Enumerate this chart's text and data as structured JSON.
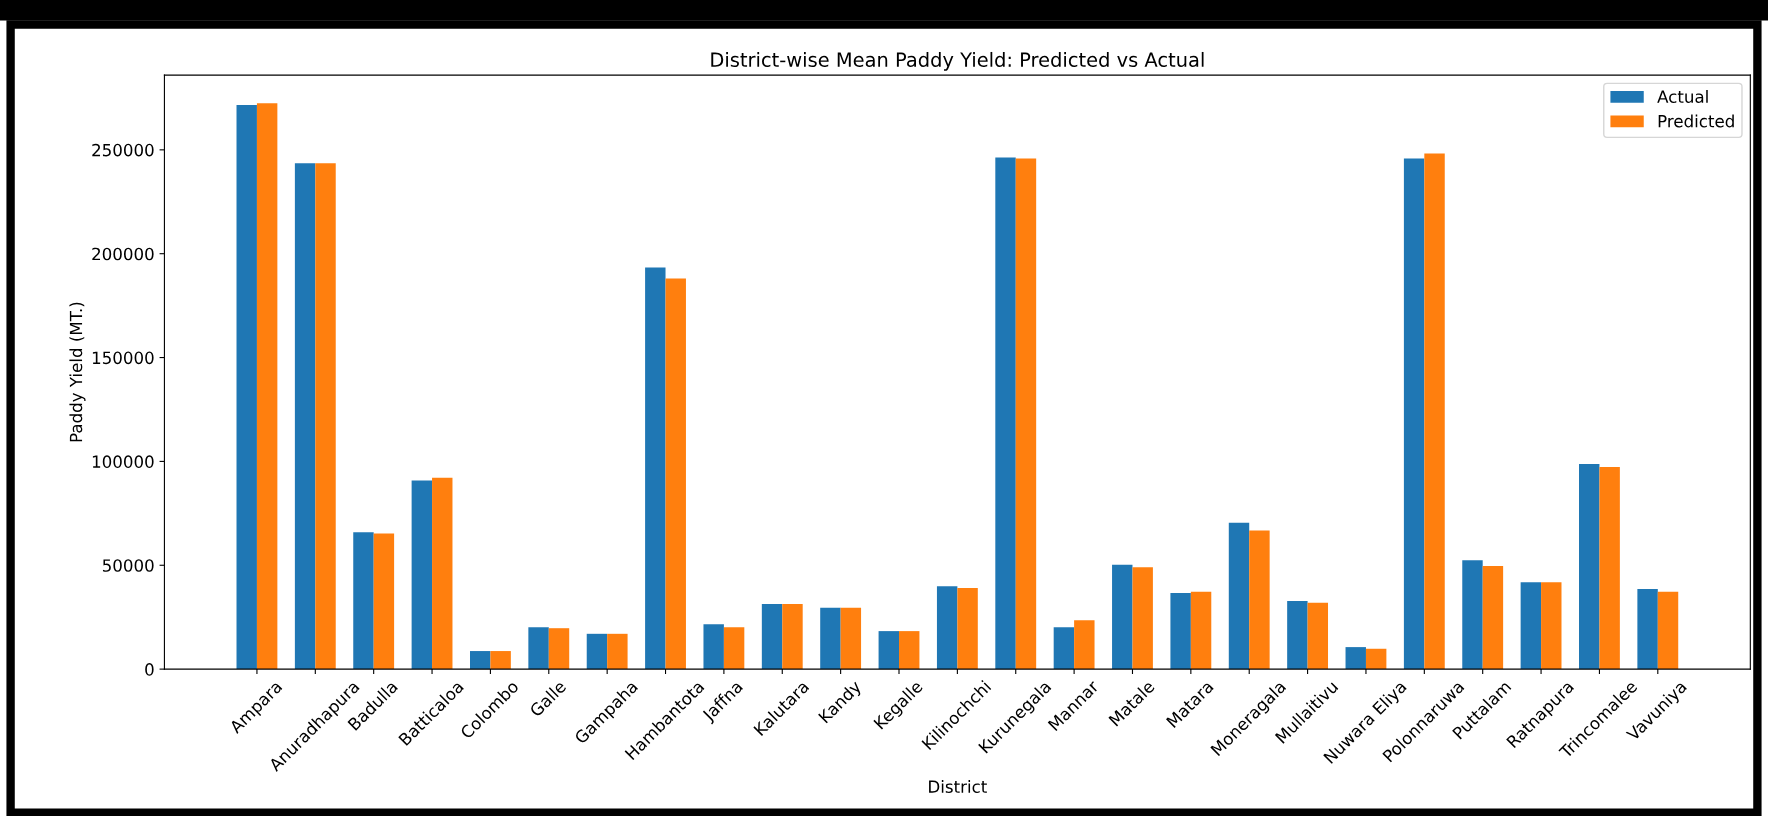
{
  "chart_data": {
    "type": "bar",
    "title": "District-wise Mean Paddy Yield: Predicted vs Actual",
    "xlabel": "District",
    "ylabel": "Paddy Yield (MT.)",
    "categories": [
      "Ampara",
      "Anuradhapura",
      "Badulla",
      "Batticaloa",
      "Colombo",
      "Galle",
      "Gampaha",
      "Hambantota",
      "Jaffna",
      "Kalutara",
      "Kandy",
      "Kegalle",
      "Kilinochchi",
      "Kurunegala",
      "Mannar",
      "Matale",
      "Matara",
      "Moneragala",
      "Mullaitivu",
      "Nuwara Eliya",
      "Polonnaruwa",
      "Puttalam",
      "Ratnapura",
      "Trincomalee",
      "Vavuniya"
    ],
    "series": [
      {
        "name": "Actual",
        "color": "#1f77b4",
        "values": [
          271600,
          243600,
          65900,
          90800,
          8700,
          20200,
          17000,
          193300,
          21600,
          31400,
          29500,
          18300,
          39900,
          246300,
          20200,
          50300,
          36600,
          70500,
          32800,
          10600,
          245800,
          52400,
          41800,
          98700,
          38600
        ]
      },
      {
        "name": "Predicted",
        "color": "#ff7f0e",
        "values": [
          272400,
          243600,
          65300,
          92100,
          8700,
          19700,
          17000,
          188100,
          20200,
          31400,
          29500,
          18300,
          39100,
          245800,
          23500,
          49000,
          37200,
          66700,
          32000,
          9800,
          248300,
          49700,
          41800,
          97300,
          37200
        ]
      }
    ],
    "ylim": [
      0,
      286000
    ],
    "yticks": [
      0,
      50000,
      100000,
      150000,
      200000,
      250000
    ],
    "legend": "top right",
    "grid": false
  }
}
